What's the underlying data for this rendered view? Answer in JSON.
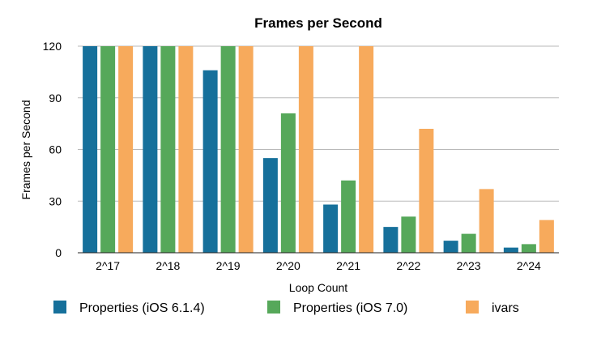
{
  "chart_data": {
    "type": "bar",
    "title": "Frames per Second",
    "xlabel": "Loop Count",
    "ylabel": "Frames per Second",
    "ylim": [
      0,
      120
    ],
    "yticks": [
      "0",
      "30",
      "60",
      "90",
      "120"
    ],
    "categories": [
      "2^17",
      "2^18",
      "2^19",
      "2^20",
      "2^21",
      "2^22",
      "2^23",
      "2^24"
    ],
    "series": [
      {
        "name": "Properties (iOS 6.1.4)",
        "color": "#16709b",
        "values": [
          120,
          120,
          106,
          55,
          28,
          15,
          7,
          3
        ]
      },
      {
        "name": "Properties (iOS 7.0)",
        "color": "#56a85a",
        "values": [
          120,
          120,
          120,
          81,
          42,
          21,
          11,
          5
        ]
      },
      {
        "name": "ivars",
        "color": "#f7aa5c",
        "values": [
          120,
          120,
          120,
          120,
          120,
          72,
          37,
          19
        ]
      }
    ],
    "grid": true,
    "legend_position": "bottom"
  }
}
